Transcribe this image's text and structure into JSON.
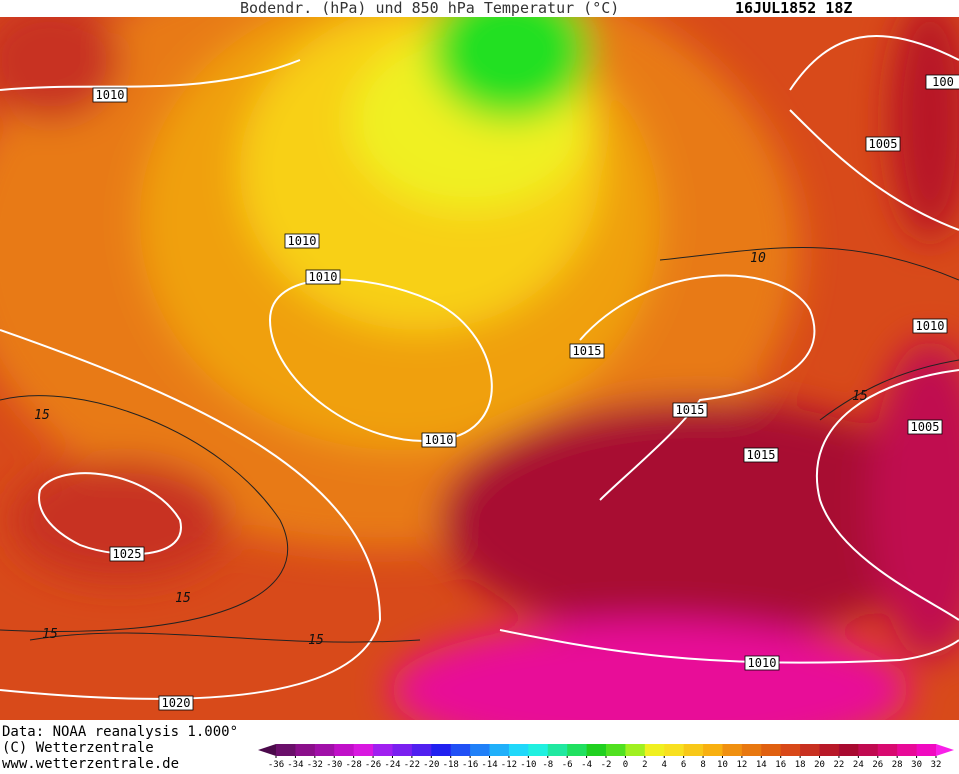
{
  "header": {
    "title": "Bodendr. (hPa) und 850 hPa Temperatur (°C)",
    "date": "16JUL1852 18Z"
  },
  "isobar_labels": [
    1010,
    1010,
    1010,
    1010,
    1025,
    1020,
    1015,
    1015,
    1015,
    1005,
    1005,
    1010,
    1010,
    100
  ],
  "isotherm_labels": [
    15,
    15,
    15,
    15,
    15,
    10
  ],
  "footer": {
    "source": "Data: NOAA reanalysis 1.000°",
    "copyright": "(C) Wetterzentrale",
    "url": "www.wetterzentrale.de"
  },
  "colorbar": {
    "ticks": [
      -36,
      -34,
      -32,
      -30,
      -28,
      -26,
      -24,
      -22,
      -20,
      -18,
      -16,
      -14,
      -12,
      -10,
      -8,
      -6,
      -4,
      -2,
      0,
      2,
      4,
      6,
      8,
      10,
      12,
      14,
      16,
      18,
      20,
      22,
      24,
      26,
      28,
      30,
      32
    ],
    "colors": [
      "#4b0a4b",
      "#6a0f6a",
      "#8a0f8a",
      "#a010a8",
      "#c010c8",
      "#d818e0",
      "#a020f0",
      "#7a20f0",
      "#5020f0",
      "#2020f0",
      "#2050f5",
      "#2080f8",
      "#20b0fa",
      "#20d8fa",
      "#20f0e0",
      "#20e8a0",
      "#20e060",
      "#20d020",
      "#50e020",
      "#a0f020",
      "#f0f020",
      "#f8e020",
      "#f8c818",
      "#f8b010",
      "#f09010",
      "#e87810",
      "#e06010",
      "#d84818",
      "#c83020",
      "#b81828",
      "#a80a30",
      "#c00a50",
      "#d80a70",
      "#e80a98",
      "#f00ac0",
      "#f820e8"
    ]
  }
}
